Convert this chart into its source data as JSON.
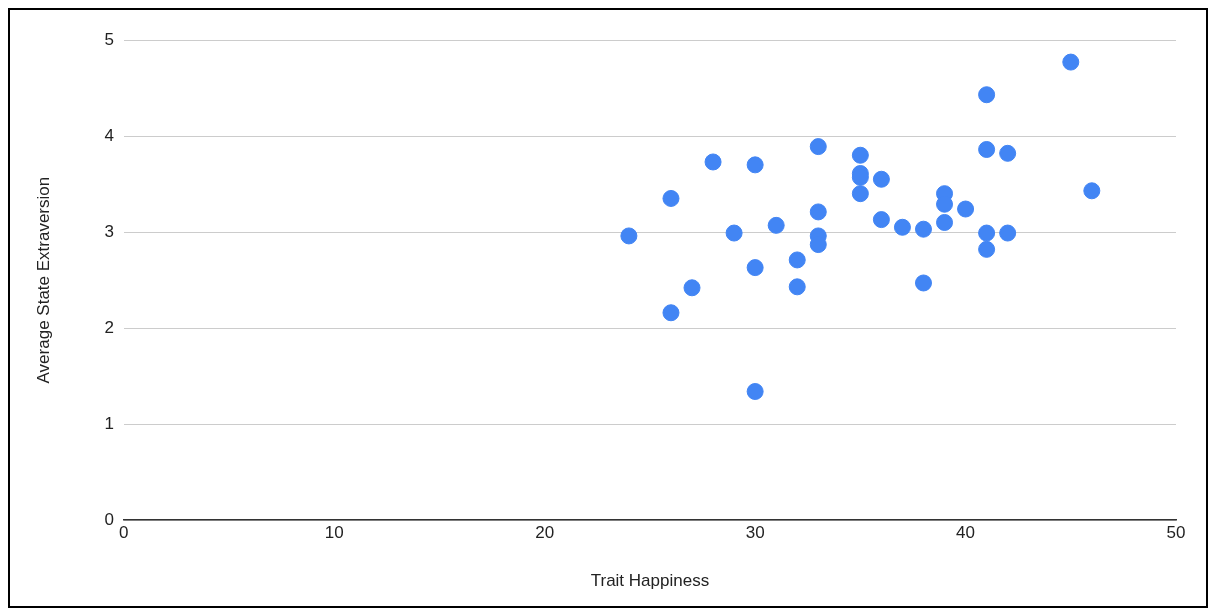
{
  "chart_data": {
    "type": "scatter",
    "xlabel": "Trait Happiness",
    "ylabel": "Average State Extraversion",
    "x": [
      24,
      26,
      26,
      27,
      28,
      29,
      30,
      30,
      30,
      31,
      32,
      32,
      33,
      33,
      33,
      33,
      35,
      35,
      35,
      35,
      36,
      36,
      37,
      38,
      38,
      39,
      39,
      39,
      40,
      41,
      41,
      41,
      41,
      42,
      42,
      45,
      46
    ],
    "series": [
      {
        "color": "#4285f4",
        "values": [
          2.96,
          3.35,
          2.16,
          2.42,
          3.73,
          2.99,
          3.7,
          2.63,
          1.34,
          3.07,
          2.71,
          2.43,
          3.89,
          3.21,
          2.96,
          2.87,
          3.8,
          3.61,
          3.57,
          3.4,
          3.55,
          3.13,
          3.05,
          3.03,
          2.47,
          3.4,
          3.29,
          3.1,
          3.24,
          4.43,
          3.86,
          2.99,
          2.82,
          3.82,
          2.99,
          4.77,
          3.43
        ]
      }
    ],
    "xlim": [
      0,
      50
    ],
    "xticks": [
      0,
      10,
      20,
      30,
      40,
      50
    ],
    "ylim": [
      0,
      5
    ],
    "yticks": [
      0,
      1,
      2,
      3,
      4,
      5
    ],
    "grid": "y",
    "legend": false,
    "marker": "circle"
  }
}
